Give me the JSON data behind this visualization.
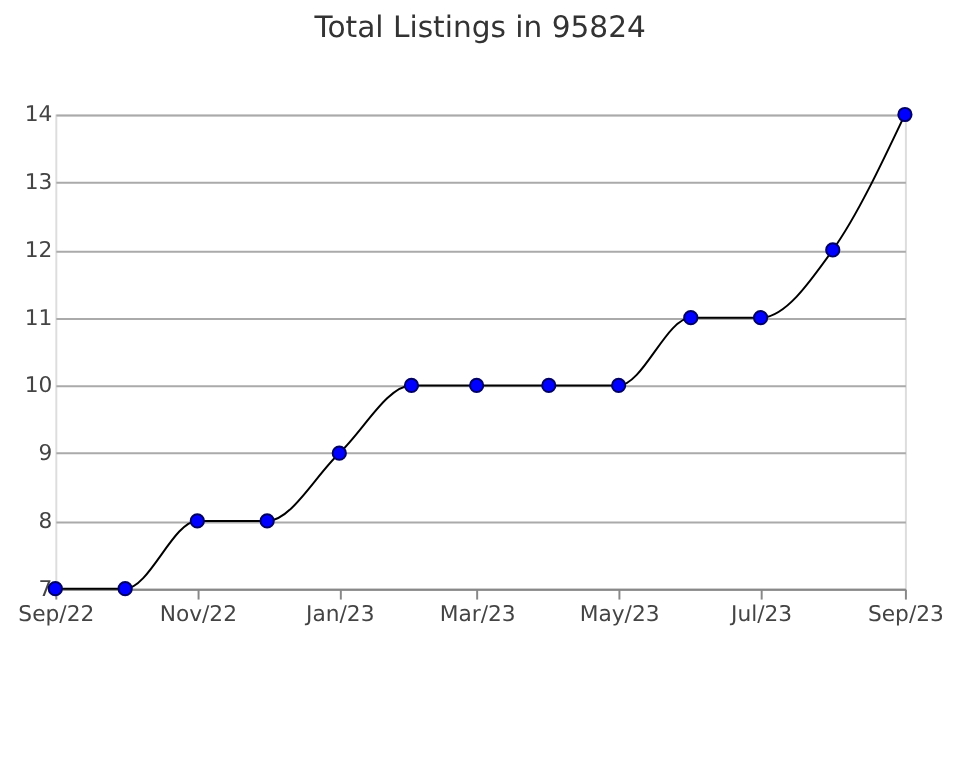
{
  "chart_data": {
    "type": "line",
    "title": "Total Listings in 95824",
    "x": [
      "2022-09",
      "2022-10",
      "2022-11",
      "2022-12",
      "2023-01",
      "2023-02",
      "2023-03",
      "2023-04",
      "2023-05",
      "2023-06",
      "2023-07",
      "2023-08",
      "2023-09"
    ],
    "series": [
      {
        "color": "#0000ff",
        "values": [
          7,
          7,
          8,
          8,
          9,
          10,
          10,
          10,
          10,
          11,
          11,
          12,
          14
        ]
      }
    ],
    "xlim": [
      "2022-09",
      "2023-09"
    ],
    "xticks": [
      {
        "value": "2022-09",
        "label": "Sep/22"
      },
      {
        "value": "2022-11",
        "label": "Nov/22"
      },
      {
        "value": "2023-01",
        "label": "Jan/23"
      },
      {
        "value": "2023-03",
        "label": "Mar/23"
      },
      {
        "value": "2023-05",
        "label": "May/23"
      },
      {
        "value": "2023-07",
        "label": "Jul/23"
      },
      {
        "value": "2023-09",
        "label": "Sep/23"
      }
    ],
    "ylim": [
      7,
      14
    ],
    "yticks": [
      7,
      8,
      9,
      10,
      11,
      12,
      13,
      14
    ],
    "grid": "y",
    "marker": "circle",
    "line_style": "solid"
  }
}
